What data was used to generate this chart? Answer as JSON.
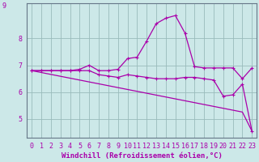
{
  "xlabel": "Windchill (Refroidissement éolien,°C)",
  "background_color": "#cce8e8",
  "line_color": "#aa00aa",
  "grid_color": "#99bbbb",
  "xlim": [
    -0.5,
    23.5
  ],
  "ylim": [
    4.3,
    9.3
  ],
  "xticks": [
    0,
    1,
    2,
    3,
    4,
    5,
    6,
    7,
    8,
    9,
    10,
    11,
    12,
    13,
    14,
    15,
    16,
    17,
    18,
    19,
    20,
    21,
    22,
    23
  ],
  "yticks": [
    5,
    6,
    7,
    8
  ],
  "ytick_top": 9,
  "series1_x": [
    0,
    1,
    2,
    3,
    4,
    5,
    6,
    7,
    8,
    9,
    10,
    11,
    12,
    13,
    14,
    15,
    16,
    17,
    18,
    19,
    20,
    21,
    22,
    23
  ],
  "series1_y": [
    6.8,
    6.8,
    6.8,
    6.8,
    6.8,
    6.85,
    7.0,
    6.8,
    6.8,
    6.85,
    7.25,
    7.3,
    7.9,
    8.55,
    8.75,
    8.85,
    8.2,
    6.95,
    6.9,
    6.9,
    6.9,
    6.9,
    6.5,
    6.9
  ],
  "series2_x": [
    0,
    1,
    2,
    3,
    4,
    5,
    6,
    7,
    8,
    9,
    10,
    11,
    12,
    13,
    14,
    15,
    16,
    17,
    18,
    19,
    20,
    21,
    22,
    23
  ],
  "series2_y": [
    6.8,
    6.8,
    6.8,
    6.8,
    6.8,
    6.8,
    6.8,
    6.65,
    6.6,
    6.55,
    6.65,
    6.6,
    6.55,
    6.5,
    6.5,
    6.5,
    6.55,
    6.55,
    6.5,
    6.45,
    5.85,
    5.9,
    6.3,
    4.55
  ],
  "series3_x": [
    0,
    1,
    2,
    3,
    4,
    5,
    6,
    7,
    8,
    9,
    10,
    11,
    12,
    13,
    14,
    15,
    16,
    17,
    18,
    19,
    20,
    21,
    22,
    23
  ],
  "series3_y": [
    6.8,
    6.73,
    6.66,
    6.59,
    6.52,
    6.45,
    6.38,
    6.31,
    6.24,
    6.17,
    6.1,
    6.03,
    5.96,
    5.89,
    5.82,
    5.75,
    5.68,
    5.61,
    5.54,
    5.47,
    5.4,
    5.33,
    5.26,
    4.55
  ],
  "marker": "+",
  "markersize": 3,
  "linewidth": 0.9,
  "xlabel_fontsize": 6.5,
  "tick_fontsize": 6
}
